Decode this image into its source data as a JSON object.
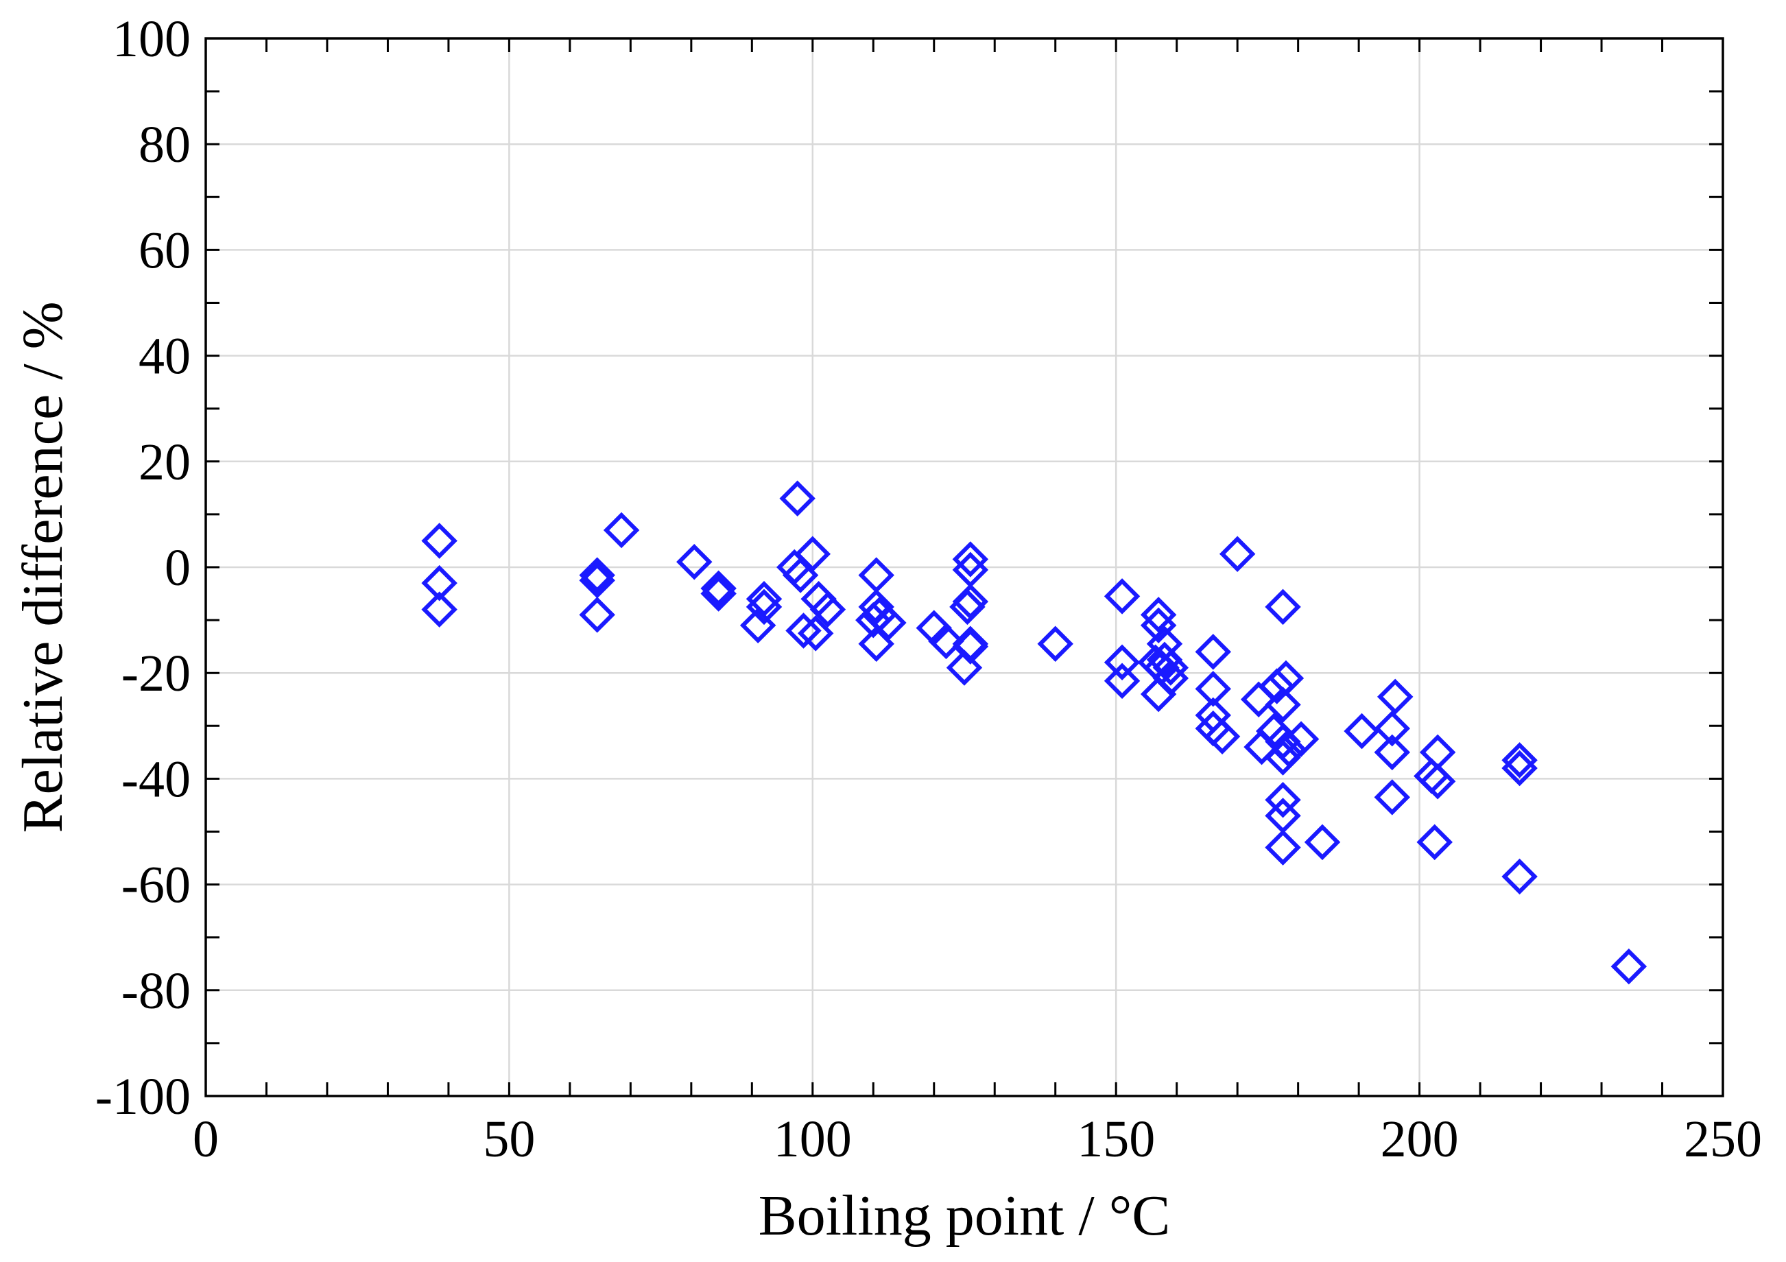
{
  "chart_data": {
    "type": "scatter",
    "title": "",
    "xlabel": "Boiling point / °C",
    "ylabel": "Relative difference / %",
    "xlim": [
      0,
      250
    ],
    "ylim": [
      -100,
      100
    ],
    "xticks": [
      0,
      50,
      100,
      150,
      200,
      250
    ],
    "yticks": [
      100,
      80,
      60,
      40,
      20,
      0,
      -20,
      -40,
      -60,
      -80,
      -100
    ],
    "xtick_labels": [
      "0",
      "50",
      "100",
      "150",
      "200",
      "250"
    ],
    "ytick_labels": [
      "100",
      "80",
      "60",
      "40",
      "20",
      "0",
      "-20",
      "-40",
      "-60",
      "-80",
      "-100"
    ],
    "x_minor_step": 10,
    "y_minor_step": 10,
    "grid": true,
    "marker": "open-diamond",
    "marker_color": "#1a1aff",
    "series": [
      {
        "name": "data",
        "points": [
          [
            38.5,
            5
          ],
          [
            38.5,
            -3
          ],
          [
            38.5,
            -8
          ],
          [
            64.5,
            -1.5
          ],
          [
            64.5,
            -2.5
          ],
          [
            64.5,
            -9
          ],
          [
            68.5,
            7
          ],
          [
            80.5,
            1
          ],
          [
            84.5,
            -4
          ],
          [
            84.5,
            -5
          ],
          [
            92,
            -6
          ],
          [
            92,
            -7.5
          ],
          [
            91,
            -11
          ],
          [
            97.5,
            13
          ],
          [
            97,
            0
          ],
          [
            98,
            -1.5
          ],
          [
            100,
            2.5
          ],
          [
            101,
            -6
          ],
          [
            98.5,
            -12
          ],
          [
            100.5,
            -12.5
          ],
          [
            102.5,
            -8
          ],
          [
            110.5,
            -1.5
          ],
          [
            110.5,
            -7.5
          ],
          [
            110,
            -10
          ],
          [
            111,
            -9
          ],
          [
            112.5,
            -10.5
          ],
          [
            110.5,
            -14.5
          ],
          [
            120,
            -11.5
          ],
          [
            122,
            -14
          ],
          [
            126,
            1.5
          ],
          [
            126,
            -0.5
          ],
          [
            126,
            -6.5
          ],
          [
            125.5,
            -7.5
          ],
          [
            126,
            -14.5
          ],
          [
            126,
            -15
          ],
          [
            125,
            -19
          ],
          [
            140,
            -14.5
          ],
          [
            151,
            -5.5
          ],
          [
            151,
            -18
          ],
          [
            151,
            -21.5
          ],
          [
            157,
            -9
          ],
          [
            157,
            -11
          ],
          [
            158,
            -14.5
          ],
          [
            156.5,
            -18
          ],
          [
            157.5,
            -19
          ],
          [
            158,
            -17.5
          ],
          [
            159,
            -19
          ],
          [
            157,
            -24
          ],
          [
            159,
            -21
          ],
          [
            170,
            2.5
          ],
          [
            166,
            -16
          ],
          [
            166,
            -23
          ],
          [
            166,
            -28
          ],
          [
            166,
            -30.5
          ],
          [
            167.5,
            -32
          ],
          [
            173.5,
            -25
          ],
          [
            174,
            -34
          ],
          [
            177.5,
            -7.5
          ],
          [
            178,
            -21
          ],
          [
            176.5,
            -22.5
          ],
          [
            177.5,
            -26
          ],
          [
            176,
            -31
          ],
          [
            177.5,
            -33
          ],
          [
            178.5,
            -34.5
          ],
          [
            177.5,
            -36
          ],
          [
            180.5,
            -32.5
          ],
          [
            177.5,
            -44
          ],
          [
            177.5,
            -47
          ],
          [
            177.5,
            -53
          ],
          [
            184,
            -52
          ],
          [
            190.5,
            -31
          ],
          [
            195.5,
            -30.5
          ],
          [
            195.5,
            -35
          ],
          [
            196,
            -24.5
          ],
          [
            195.5,
            -43.5
          ],
          [
            203,
            -35
          ],
          [
            202,
            -39.5
          ],
          [
            203,
            -40.5
          ],
          [
            202.5,
            -52
          ],
          [
            216.5,
            -36.5
          ],
          [
            216.5,
            -38
          ],
          [
            216.5,
            -58.5
          ],
          [
            234.5,
            -75.5
          ]
        ]
      }
    ]
  }
}
